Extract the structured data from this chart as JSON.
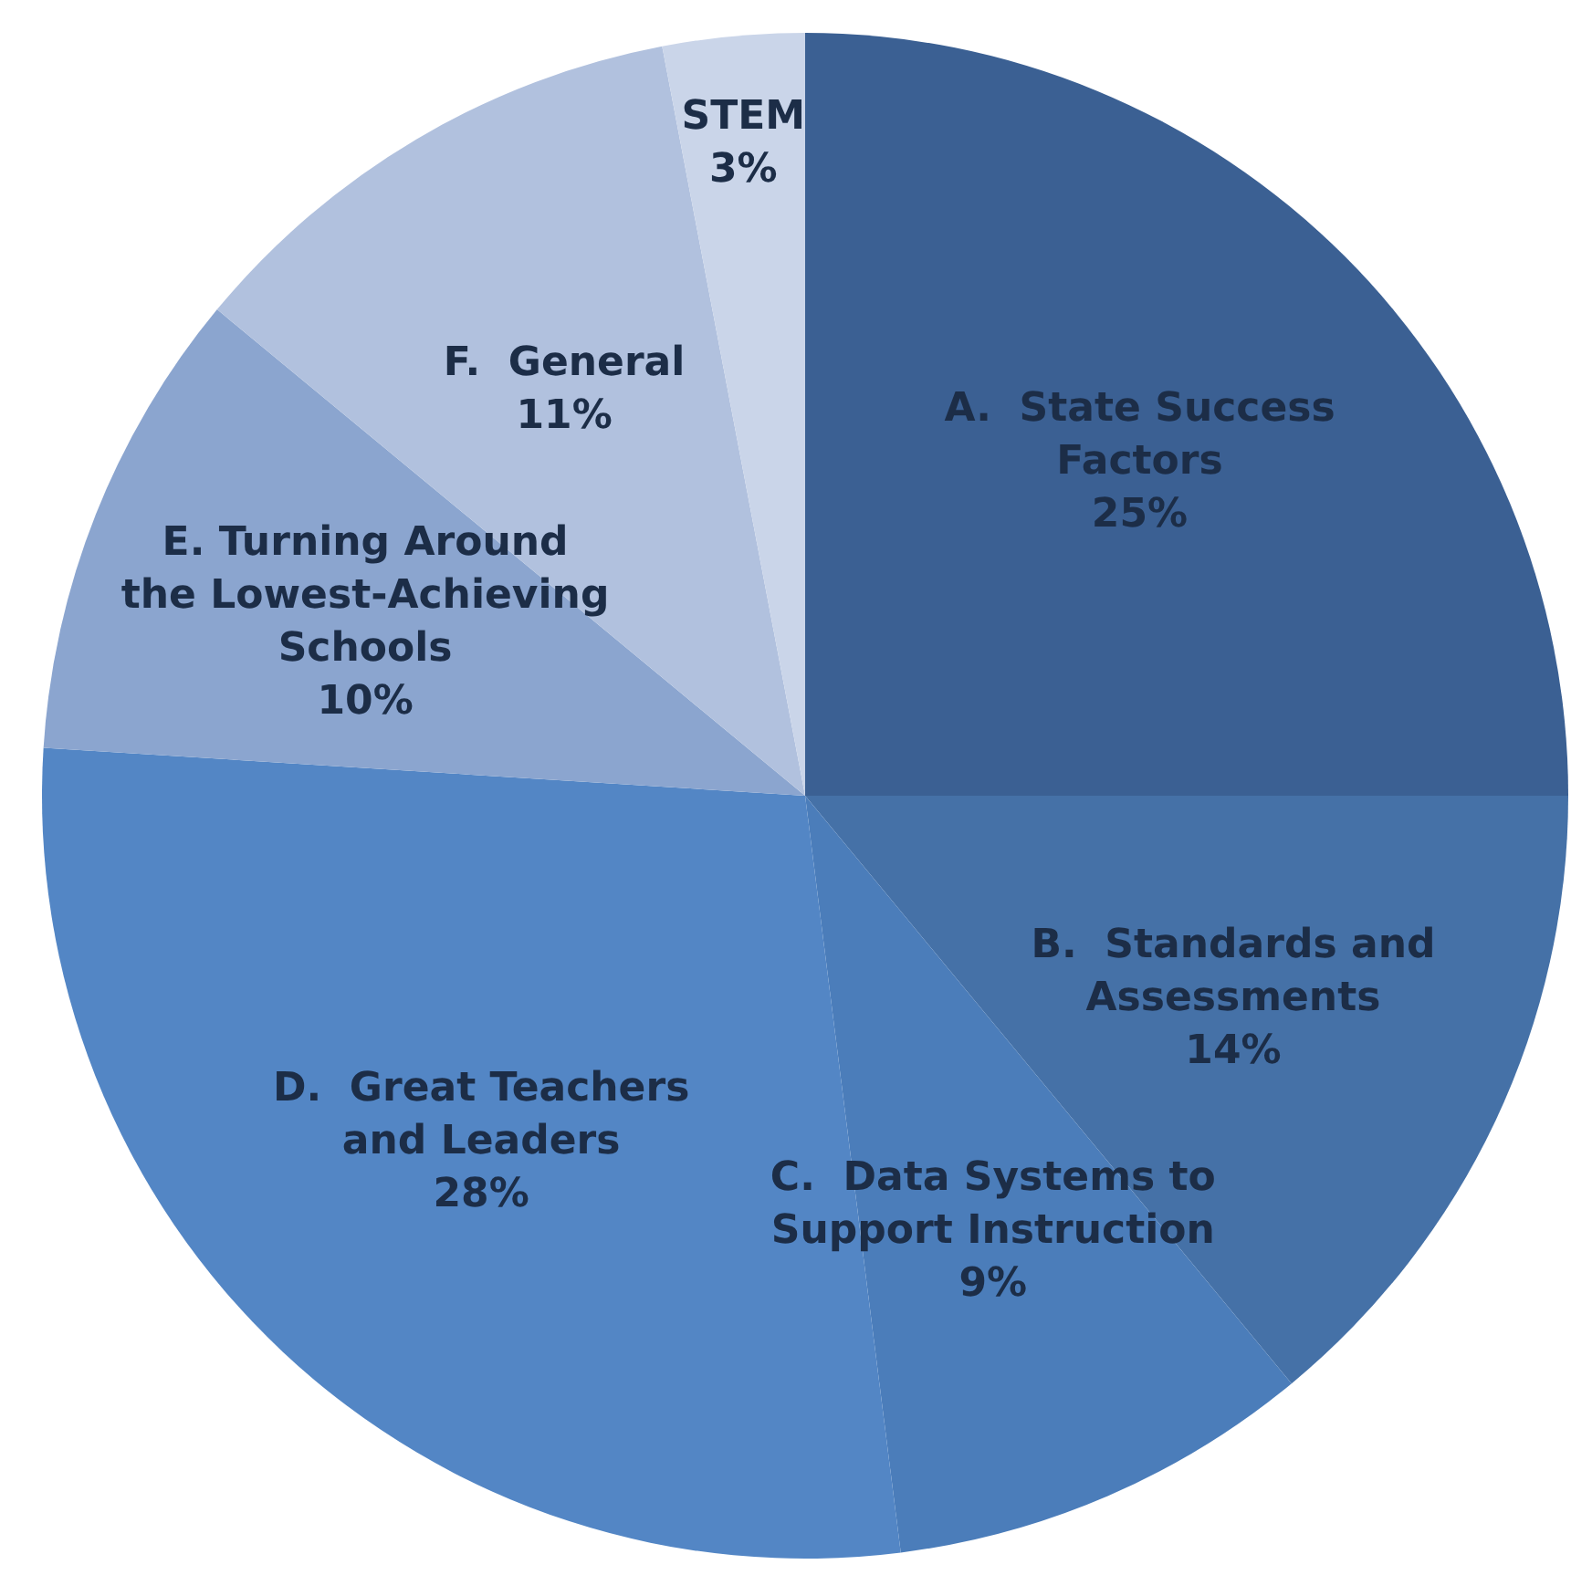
{
  "chart_data": {
    "type": "pie",
    "categories": [
      "A.  State Success Factors",
      "B.  Standards and Assessments",
      "C.  Data Systems to Support Instruction",
      "D.  Great Teachers and Leaders",
      "E. Turning Around the Lowest-Achieving Schools",
      "F.  General",
      "STEM"
    ],
    "values": [
      25,
      14,
      9,
      28,
      10,
      11,
      3
    ],
    "value_labels": [
      "25%",
      "14%",
      "9%",
      "28%",
      "10%",
      "11%",
      "3%"
    ],
    "colors": [
      "#3b6093",
      "#4571a7",
      "#4b7dba",
      "#5386c5",
      "#8ba5cf",
      "#b1c1de",
      "#cad5e9"
    ]
  }
}
